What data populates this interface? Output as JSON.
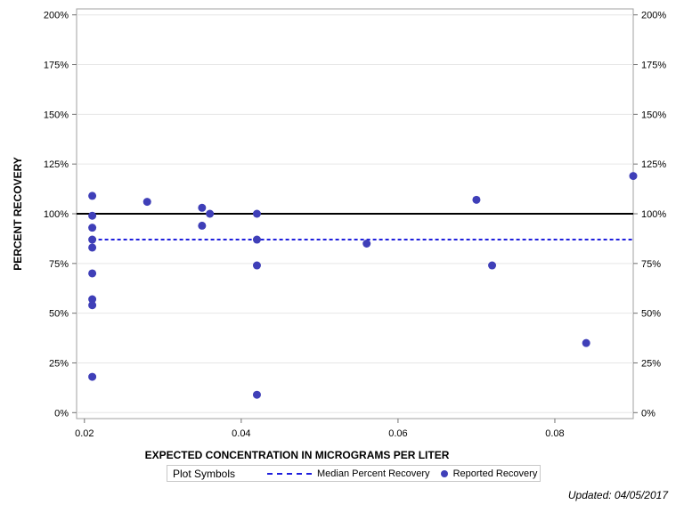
{
  "chart_data": {
    "type": "scatter",
    "title": "",
    "xlabel": "EXPECTED CONCENTRATION IN MICROGRAMS PER LITER",
    "ylabel": "PERCENT RECOVERY",
    "xlim": [
      0.019,
      0.09
    ],
    "ylim": [
      -0.03,
      2.03
    ],
    "x_ticks": [
      0.02,
      0.04,
      0.06,
      0.08
    ],
    "x_tick_labels": [
      "0.02",
      "0.04",
      "0.06",
      "0.08"
    ],
    "y_ticks": [
      0,
      0.25,
      0.5,
      0.75,
      1.0,
      1.25,
      1.5,
      1.75,
      2.0
    ],
    "y_tick_labels": [
      "0%",
      "25%",
      "50%",
      "75%",
      "100%",
      "125%",
      "150%",
      "175%",
      "200%"
    ],
    "grid": "horizontal",
    "reference_line": {
      "y": 1.0,
      "color": "#000000"
    },
    "median_line": {
      "name": "Median Percent Recovery",
      "y": 0.87,
      "x_range": [
        0.021,
        0.09
      ],
      "color": "#1f1fdd"
    },
    "series": [
      {
        "name": "Reported Recovery",
        "color": "#3f3fb8",
        "points": [
          {
            "x": 0.021,
            "y": 1.09
          },
          {
            "x": 0.021,
            "y": 0.99
          },
          {
            "x": 0.021,
            "y": 0.93
          },
          {
            "x": 0.021,
            "y": 0.87
          },
          {
            "x": 0.021,
            "y": 0.83
          },
          {
            "x": 0.021,
            "y": 0.7
          },
          {
            "x": 0.021,
            "y": 0.57
          },
          {
            "x": 0.021,
            "y": 0.54
          },
          {
            "x": 0.021,
            "y": 0.18
          },
          {
            "x": 0.028,
            "y": 1.06
          },
          {
            "x": 0.035,
            "y": 1.03
          },
          {
            "x": 0.035,
            "y": 0.94
          },
          {
            "x": 0.036,
            "y": 1.0
          },
          {
            "x": 0.042,
            "y": 1.0
          },
          {
            "x": 0.042,
            "y": 0.87
          },
          {
            "x": 0.042,
            "y": 0.74
          },
          {
            "x": 0.042,
            "y": 0.09
          },
          {
            "x": 0.056,
            "y": 0.85
          },
          {
            "x": 0.07,
            "y": 1.07
          },
          {
            "x": 0.072,
            "y": 0.74
          },
          {
            "x": 0.084,
            "y": 0.35
          },
          {
            "x": 0.09,
            "y": 1.19
          }
        ]
      }
    ]
  },
  "legend": {
    "title": "Plot Symbols",
    "median_label": "Median Percent Recovery",
    "reported_label": "Reported Recovery"
  },
  "footer": {
    "updated": "Updated: 04/05/2017"
  }
}
